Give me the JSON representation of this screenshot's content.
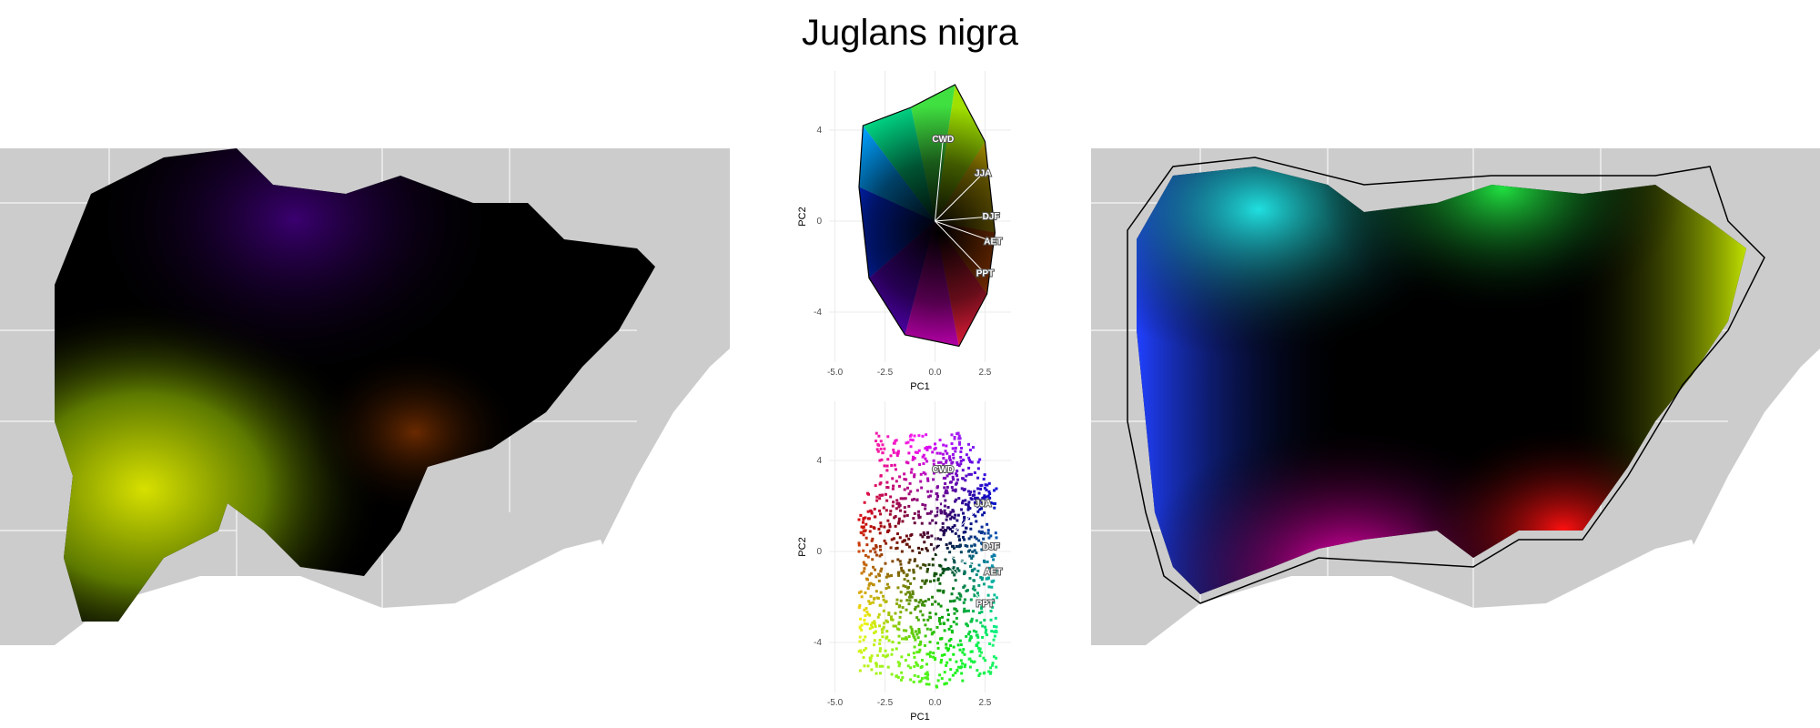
{
  "title": "Juglans nigra",
  "colors": {
    "land": "#cccccc",
    "borders": "#ffffff",
    "background": "#ffffff"
  },
  "chart_data": [
    {
      "type": "scatter",
      "panel": "pca-top",
      "xlabel": "PC1",
      "ylabel": "PC2",
      "xlim": [
        -5.3,
        3.8
      ],
      "ylim": [
        -6.2,
        6.6
      ],
      "xticks": [
        -5.0,
        -2.5,
        0.0,
        2.5
      ],
      "yticks": [
        -4,
        0,
        4
      ],
      "xtick_labels": [
        "-5.0",
        "-2.5",
        "0.0",
        "2.5"
      ],
      "ytick_labels": [
        "-4",
        "0",
        "4"
      ],
      "grid": true,
      "variables": [
        {
          "name": "CWD",
          "x": 0.4,
          "y": 3.6
        },
        {
          "name": "JJA",
          "x": 2.4,
          "y": 2.1
        },
        {
          "name": "DJF",
          "x": 2.8,
          "y": 0.2
        },
        {
          "name": "AET",
          "x": 2.9,
          "y": -0.9
        },
        {
          "name": "PPT",
          "x": 2.5,
          "y": -2.3
        }
      ]
    },
    {
      "type": "scatter",
      "panel": "pca-bottom",
      "xlabel": "PC1",
      "ylabel": "PC2",
      "xlim": [
        -5.3,
        3.8
      ],
      "ylim": [
        -6.2,
        6.6
      ],
      "xticks": [
        -5.0,
        -2.5,
        0.0,
        2.5
      ],
      "yticks": [
        -4,
        0,
        4
      ],
      "xtick_labels": [
        "-5.0",
        "-2.5",
        "0.0",
        "2.5"
      ],
      "ytick_labels": [
        "-4",
        "0",
        "4"
      ],
      "grid": true,
      "variables": [
        {
          "name": "CWD",
          "x": 0.4,
          "y": 3.6
        },
        {
          "name": "JJA",
          "x": 2.4,
          "y": 2.1
        },
        {
          "name": "DJF",
          "x": 2.8,
          "y": 0.2
        },
        {
          "name": "AET",
          "x": 2.9,
          "y": -0.9
        },
        {
          "name": "PPT",
          "x": 2.5,
          "y": -2.3
        }
      ]
    }
  ]
}
